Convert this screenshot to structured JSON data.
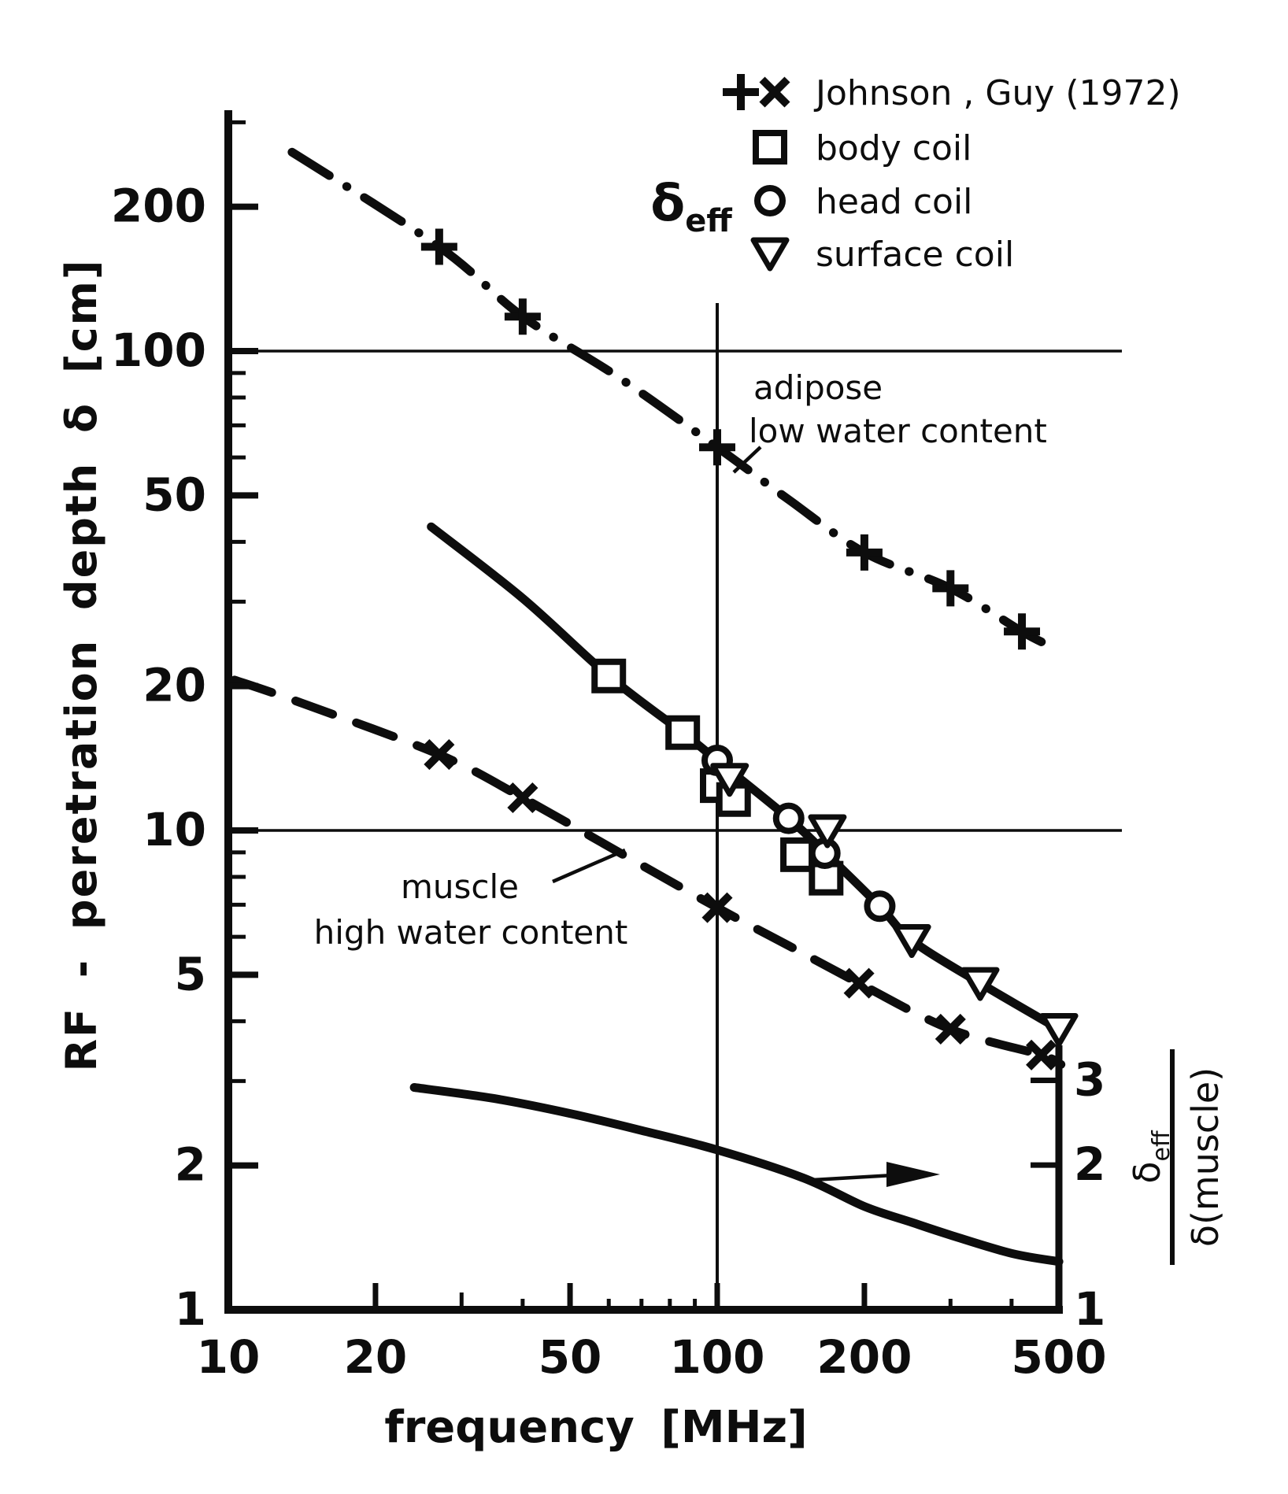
{
  "figure": {
    "background": "#ffffff",
    "ink": "#0d0d0d",
    "x_axis_title": "frequency [MHz]",
    "y_axis_title": "RF - peretration depth δ [cm]"
  },
  "legend": {
    "entries": [
      {
        "markers": [
          "plus",
          "cross"
        ],
        "label": "Johnson , Guy (1972)"
      },
      {
        "markers": [
          "square"
        ],
        "label": "body coil"
      },
      {
        "markers": [
          "circle"
        ],
        "label": "head coil"
      },
      {
        "markers": [
          "triangle"
        ],
        "label": "surface coil"
      }
    ],
    "group_label": {
      "base": "δ",
      "subscript": "eff"
    }
  },
  "annotations": {
    "adipose": {
      "line1": "adipose",
      "line2": "low water content"
    },
    "muscle": {
      "line1": "muscle",
      "line2": "high water content"
    }
  },
  "right_axis_label": {
    "numerator_base": "δ",
    "numerator_subscript": "eff",
    "denominator": "δ(muscle)"
  },
  "chart_data": {
    "type": "line",
    "x_axis": {
      "label": "frequency [MHz]",
      "scale": "log",
      "range": [
        10,
        500
      ],
      "labeled_ticks": [
        {
          "value": 10,
          "label": "10"
        },
        {
          "value": 20,
          "label": "20"
        },
        {
          "value": 50,
          "label": "50"
        },
        {
          "value": 100,
          "label": "100"
        },
        {
          "value": 200,
          "label": "200"
        },
        {
          "value": 500,
          "label": "500"
        }
      ],
      "minor_ticks": [
        30,
        40,
        60,
        70,
        80,
        90,
        300,
        400
      ]
    },
    "y_axis_left": {
      "label": "RF - peretration depth δ [cm]",
      "scale": "log",
      "range": [
        1,
        300
      ],
      "labeled_ticks": [
        {
          "value": 1,
          "label": "1"
        },
        {
          "value": 2,
          "label": "2"
        },
        {
          "value": 5,
          "label": "5"
        },
        {
          "value": 10,
          "label": "10"
        },
        {
          "value": 20,
          "label": "20"
        },
        {
          "value": 50,
          "label": "50"
        },
        {
          "value": 100,
          "label": "100"
        },
        {
          "value": 200,
          "label": "200"
        }
      ],
      "minor_ticks": [
        3,
        4,
        6,
        7,
        8,
        9,
        30,
        40,
        60,
        70,
        80,
        90,
        300
      ],
      "gridlines": [
        10,
        100
      ]
    },
    "y_axis_right": {
      "label": "δ_eff / δ(muscle)",
      "scale": "log",
      "range": [
        1,
        3.5
      ],
      "labeled_ticks": [
        {
          "value": 1,
          "label": "1"
        },
        {
          "value": 2,
          "label": "2"
        },
        {
          "value": 3,
          "label": "3"
        }
      ]
    },
    "reference_lines": {
      "vertical_at_x": 100
    },
    "series": [
      {
        "name": "adipose low water content",
        "axis": "left",
        "style": "dashdot",
        "marker": "plus",
        "points": [
          [
            13.5,
            260
          ],
          [
            27,
            165
          ],
          [
            40,
            118
          ],
          [
            63,
            88
          ],
          [
            100,
            63
          ],
          [
            140,
            49
          ],
          [
            200,
            38
          ],
          [
            300,
            32
          ],
          [
            420,
            26
          ],
          [
            470,
            24.5
          ]
        ],
        "marker_points": [
          [
            27,
            165
          ],
          [
            40,
            118
          ],
          [
            100,
            63
          ],
          [
            200,
            38
          ],
          [
            300,
            32
          ],
          [
            420,
            26
          ]
        ]
      },
      {
        "name": "muscle high water content",
        "axis": "left",
        "style": "dashed",
        "marker": "cross",
        "points": [
          [
            10.3,
            20.6
          ],
          [
            14,
            18.5
          ],
          [
            27,
            14.4
          ],
          [
            40,
            11.7
          ],
          [
            63,
            9.0
          ],
          [
            100,
            6.9
          ],
          [
            140,
            5.75
          ],
          [
            195,
            4.8
          ],
          [
            300,
            3.85
          ],
          [
            460,
            3.4
          ],
          [
            505,
            3.25
          ]
        ],
        "marker_points": [
          [
            27,
            14.4
          ],
          [
            40,
            11.7
          ],
          [
            100,
            6.9
          ],
          [
            195,
            4.8
          ],
          [
            300,
            3.85
          ],
          [
            460,
            3.4
          ]
        ]
      },
      {
        "name": "delta eff curve",
        "axis": "left",
        "style": "solid",
        "marker": null,
        "points": [
          [
            26,
            43
          ],
          [
            40,
            30.5
          ],
          [
            60,
            21
          ],
          [
            85,
            16
          ],
          [
            100,
            14
          ],
          [
            140,
            10.6
          ],
          [
            166,
            9.0
          ],
          [
            215,
            6.95
          ],
          [
            250,
            5.9
          ],
          [
            345,
            4.8
          ],
          [
            500,
            3.85
          ]
        ],
        "marker_points": []
      },
      {
        "name": "body coil",
        "axis": "left",
        "style": "markers-only",
        "marker": "square",
        "marker_points": [
          [
            60,
            21
          ],
          [
            85,
            16
          ],
          [
            100,
            12.4
          ],
          [
            108,
            11.6
          ],
          [
            146,
            8.9
          ],
          [
            167,
            7.95
          ]
        ]
      },
      {
        "name": "head coil",
        "axis": "left",
        "style": "markers-only",
        "marker": "circle",
        "marker_points": [
          [
            100,
            14
          ],
          [
            140,
            10.6
          ],
          [
            166,
            8.96
          ],
          [
            215,
            6.95
          ]
        ]
      },
      {
        "name": "surface coil",
        "axis": "left",
        "style": "markers-only",
        "marker": "triangle",
        "marker_points": [
          [
            106,
            12.8
          ],
          [
            168,
            10.0
          ],
          [
            250,
            5.9
          ],
          [
            345,
            4.8
          ],
          [
            500,
            3.85
          ]
        ]
      },
      {
        "name": "delta eff over delta muscle ratio",
        "axis": "right",
        "style": "solid",
        "marker": null,
        "points": [
          [
            24,
            2.9
          ],
          [
            35,
            2.75
          ],
          [
            50,
            2.56
          ],
          [
            70,
            2.36
          ],
          [
            100,
            2.15
          ],
          [
            150,
            1.88
          ],
          [
            200,
            1.64
          ],
          [
            250,
            1.52
          ],
          [
            300,
            1.43
          ],
          [
            400,
            1.31
          ],
          [
            500,
            1.26
          ]
        ],
        "marker_points": []
      }
    ]
  }
}
